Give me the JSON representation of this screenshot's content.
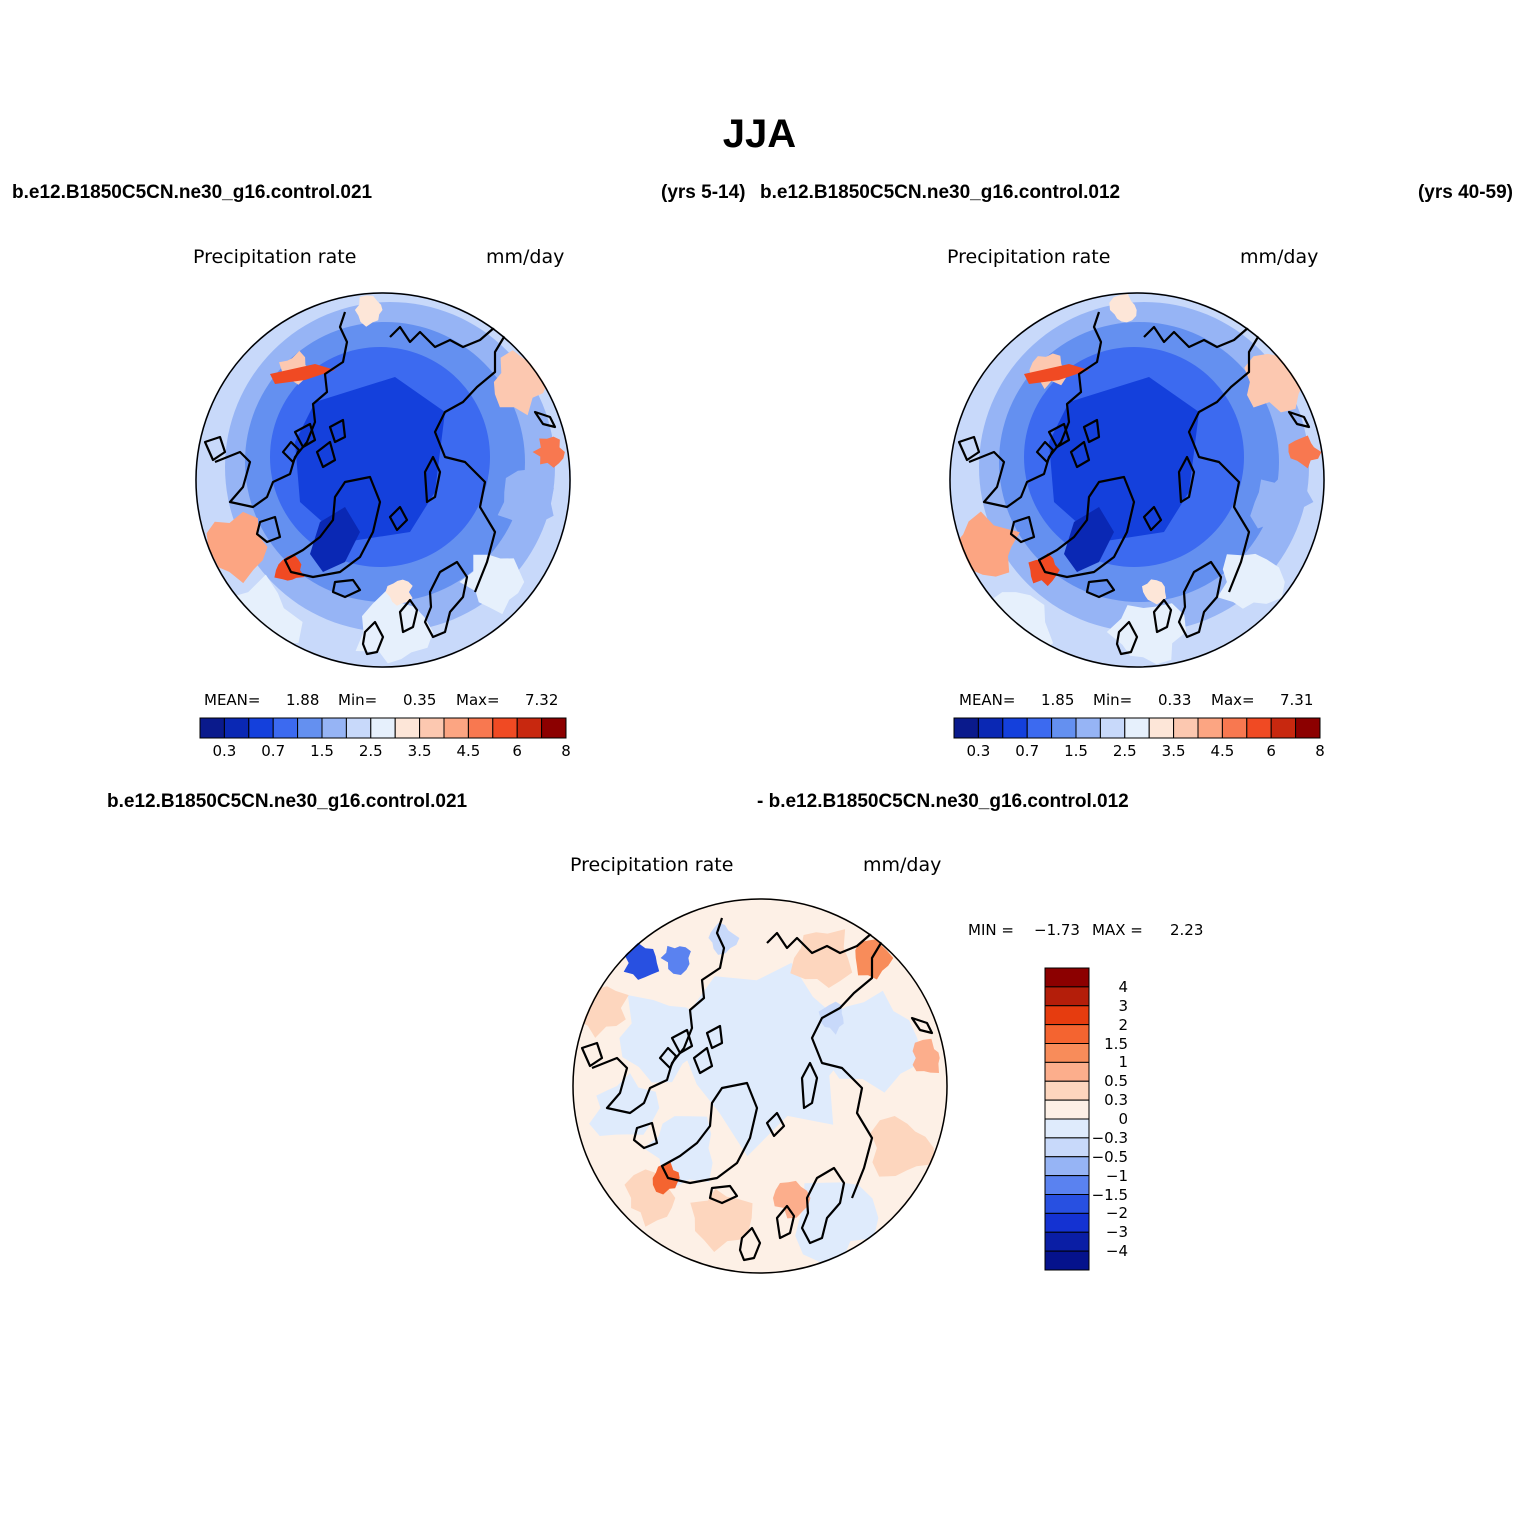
{
  "figure": {
    "title": "JJA"
  },
  "panels": [
    {
      "case_name": "b.e12.B1850C5CN.ne30_g16.control.021",
      "years": "(yrs 5-14)",
      "variable": "Precipitation rate",
      "units": "mm/day",
      "stats": {
        "mean_label": "MEAN=",
        "mean": "1.88",
        "min_label": "Min=",
        "min": "0.35",
        "max_label": "Max=",
        "max": "7.32"
      }
    },
    {
      "case_name": "b.e12.B1850C5CN.ne30_g16.control.012",
      "years": "(yrs 40-59)",
      "variable": "Precipitation rate",
      "units": "mm/day",
      "stats": {
        "mean_label": "MEAN=",
        "mean": "1.85",
        "min_label": "Min=",
        "min": "0.33",
        "max_label": "Max=",
        "max": "7.31"
      }
    }
  ],
  "difference_panel": {
    "case_name_a": "b.e12.B1850C5CN.ne30_g16.control.021",
    "case_name_b": "- b.e12.B1850C5CN.ne30_g16.control.012",
    "variable": "Precipitation rate",
    "units": "mm/day",
    "minmax": {
      "min_label": "MIN =",
      "min": "−1.73",
      "max_label": "MAX =",
      "max": "2.23"
    }
  },
  "colorbars": {
    "absolute": {
      "colors": [
        "#0a1a8c",
        "#0a28b4",
        "#1440dc",
        "#3c6af0",
        "#6490f0",
        "#96b4f5",
        "#c8d9fa",
        "#e6f0fc",
        "#fde6d8",
        "#fcc8b0",
        "#fca582",
        "#f87850",
        "#f04a23",
        "#c8280f",
        "#8c0000"
      ],
      "labels": [
        "0.3",
        "0.7",
        "1.5",
        "2.5",
        "3.5",
        "4.5",
        "6",
        "8"
      ]
    },
    "difference": {
      "colors": [
        "#8c0000",
        "#b41e0a",
        "#e63c0f",
        "#f46430",
        "#f88c5a",
        "#fcae8c",
        "#fdd6be",
        "#fdf0e6",
        "#dfebfc",
        "#c8d9fa",
        "#96b4f5",
        "#5a82f0",
        "#2850e1",
        "#1432d2",
        "#0a1ea5",
        "#05128c"
      ],
      "labels": [
        "4",
        "3",
        "2",
        "1.5",
        "1",
        "0.5",
        "0.3",
        "0",
        "−0.3",
        "−0.5",
        "−1",
        "−1.5",
        "−2",
        "−3",
        "−4"
      ]
    }
  },
  "chart_data": [
    {
      "type": "heatmap",
      "title": "Precipitation rate",
      "units": "mm/day",
      "projection": "polar stereographic (North Pole)",
      "stats": {
        "mean": 1.88,
        "min": 0.35,
        "max": 7.32
      },
      "contour_levels": [
        0.2,
        0.3,
        0.5,
        0.7,
        1,
        1.5,
        2,
        2.5,
        3,
        3.5,
        4,
        4.5,
        5,
        6,
        7,
        8
      ]
    },
    {
      "type": "heatmap",
      "title": "Precipitation rate",
      "units": "mm/day",
      "projection": "polar stereographic (North Pole)",
      "stats": {
        "mean": 1.85,
        "min": 0.33,
        "max": 7.31
      },
      "contour_levels": [
        0.2,
        0.3,
        0.5,
        0.7,
        1,
        1.5,
        2,
        2.5,
        3,
        3.5,
        4,
        4.5,
        5,
        6,
        7,
        8
      ]
    },
    {
      "type": "heatmap",
      "title": "Precipitation rate",
      "units": "mm/day",
      "projection": "polar stereographic (North Pole)",
      "stats": {
        "min": -1.73,
        "max": 2.23
      },
      "contour_levels": [
        -4,
        -3,
        -2,
        -1.5,
        -1,
        -0.5,
        -0.3,
        0,
        0.3,
        0.5,
        1,
        1.5,
        2,
        3,
        4
      ]
    }
  ]
}
